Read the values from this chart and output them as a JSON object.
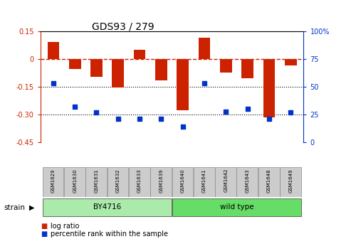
{
  "title": "GDS93 / 279",
  "samples": [
    "GSM1629",
    "GSM1630",
    "GSM1631",
    "GSM1632",
    "GSM1633",
    "GSM1639",
    "GSM1640",
    "GSM1641",
    "GSM1642",
    "GSM1643",
    "GSM1648",
    "GSM1649"
  ],
  "log_ratio": [
    0.09,
    -0.055,
    -0.095,
    -0.155,
    0.05,
    -0.115,
    -0.275,
    0.115,
    -0.075,
    -0.105,
    -0.315,
    -0.035
  ],
  "percentile": [
    53,
    32,
    27,
    21,
    21,
    21,
    14,
    53,
    28,
    30,
    21,
    27
  ],
  "groups": [
    {
      "label": "BY4716",
      "start": 0,
      "end": 6,
      "color": "#aaeaaa"
    },
    {
      "label": "wild type",
      "start": 6,
      "end": 12,
      "color": "#66dd66"
    }
  ],
  "bar_color": "#cc2200",
  "dot_color": "#0033cc",
  "ref_line_color": "#cc2200",
  "ylim_left": [
    -0.45,
    0.15
  ],
  "ylim_right": [
    0,
    100
  ],
  "left_yticks": [
    0.15,
    0,
    -0.15,
    -0.3,
    -0.45
  ],
  "left_yticklabels": [
    "0.15",
    "0",
    "-0.15",
    "-0.30",
    "-0.45"
  ],
  "right_yticks": [
    100,
    75,
    50,
    25,
    0
  ],
  "right_yticklabels": [
    "100%",
    "75",
    "50",
    "25",
    "0"
  ],
  "bg_color": "#ffffff",
  "strain_label": "strain",
  "legend_items": [
    {
      "label": "log ratio",
      "color": "#cc2200"
    },
    {
      "label": "percentile rank within the sample",
      "color": "#0033cc"
    }
  ]
}
